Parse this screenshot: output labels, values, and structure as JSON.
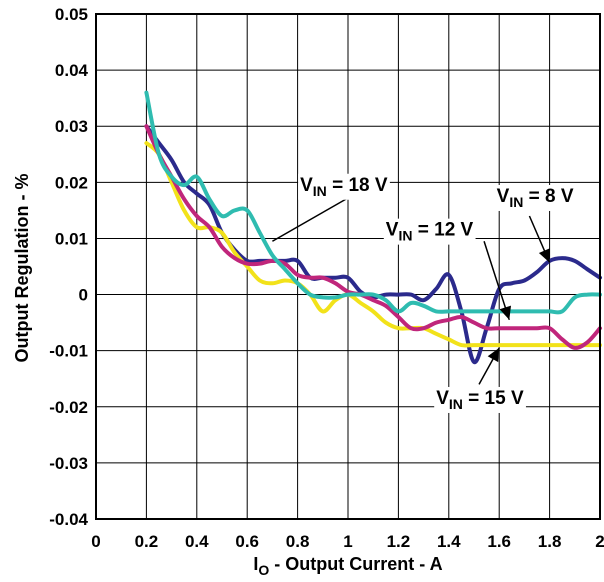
{
  "chart_data": {
    "type": "line",
    "title": "",
    "xlabel": {
      "main": "I",
      "sub": "O",
      "rest": " - Output Current - A"
    },
    "ylabel": "Output Regulation - %",
    "xlim": [
      0,
      2
    ],
    "ylim": [
      -0.04,
      0.05
    ],
    "x_ticks": [
      0,
      0.2,
      0.4,
      0.6,
      0.8,
      1,
      1.2,
      1.4,
      1.6,
      1.8,
      2
    ],
    "x_tick_labels": [
      "0",
      "0.2",
      "0.4",
      "0.6",
      "0.8",
      "1",
      "1.2",
      "1.4",
      "1.6",
      "1.8",
      "2"
    ],
    "y_ticks": [
      0.05,
      0.04,
      0.03,
      0.02,
      0.01,
      0,
      -0.01,
      -0.02,
      -0.03,
      -0.04
    ],
    "y_tick_labels": [
      "0.05",
      "0.04",
      "0.03",
      "0.02",
      "0.01",
      "0",
      "-0.01",
      "-0.02",
      "-0.03",
      "-0.04"
    ],
    "grid": true,
    "series": [
      {
        "name": "VIN = 8 V",
        "color": "#2b2a8c",
        "x": [
          0.2,
          0.25,
          0.3,
          0.35,
          0.4,
          0.45,
          0.5,
          0.55,
          0.6,
          0.65,
          0.7,
          0.75,
          0.8,
          0.85,
          0.9,
          0.95,
          1.0,
          1.05,
          1.1,
          1.15,
          1.2,
          1.25,
          1.3,
          1.35,
          1.4,
          1.45,
          1.5,
          1.55,
          1.6,
          1.65,
          1.7,
          1.75,
          1.8,
          1.85,
          1.9,
          1.95,
          2.0
        ],
        "y": [
          0.03,
          0.027,
          0.024,
          0.02,
          0.018,
          0.016,
          0.011,
          0.008,
          0.006,
          0.006,
          0.006,
          0.006,
          0.006,
          0.003,
          0.003,
          0.003,
          0.003,
          0.0005,
          -0.0005,
          0.0,
          0.0,
          0.0,
          -0.001,
          0.001,
          0.0035,
          -0.003,
          -0.012,
          -0.006,
          0.001,
          0.002,
          0.0025,
          0.004,
          0.006,
          0.0065,
          0.006,
          0.0045,
          0.003
        ]
      },
      {
        "name": "VIN = 12 V",
        "color": "#c0267b",
        "x": [
          0.2,
          0.25,
          0.3,
          0.35,
          0.4,
          0.45,
          0.5,
          0.55,
          0.6,
          0.65,
          0.7,
          0.75,
          0.8,
          0.85,
          0.9,
          0.95,
          1.0,
          1.05,
          1.1,
          1.15,
          1.2,
          1.25,
          1.3,
          1.35,
          1.4,
          1.45,
          1.5,
          1.55,
          1.6,
          1.65,
          1.7,
          1.75,
          1.8,
          1.85,
          1.9,
          1.95,
          2.0
        ],
        "y": [
          0.03,
          0.025,
          0.021,
          0.017,
          0.014,
          0.012,
          0.0085,
          0.0065,
          0.0055,
          0.0055,
          0.006,
          0.0055,
          0.0035,
          0.003,
          0.003,
          0.002,
          0.0005,
          0.0,
          -0.001,
          -0.002,
          -0.004,
          -0.006,
          -0.006,
          -0.005,
          -0.0045,
          -0.004,
          -0.005,
          -0.006,
          -0.006,
          -0.006,
          -0.006,
          -0.006,
          -0.006,
          -0.008,
          -0.0095,
          -0.0085,
          -0.006
        ]
      },
      {
        "name": "VIN = 15 V",
        "color": "#f2e21a",
        "x": [
          0.2,
          0.25,
          0.3,
          0.35,
          0.4,
          0.45,
          0.5,
          0.55,
          0.6,
          0.65,
          0.7,
          0.75,
          0.8,
          0.85,
          0.9,
          0.95,
          1.0,
          1.05,
          1.1,
          1.15,
          1.2,
          1.25,
          1.3,
          1.35,
          1.4,
          1.45,
          1.5,
          1.55,
          1.6,
          1.65,
          1.7,
          1.75,
          1.8,
          1.85,
          1.9,
          1.95,
          2.0
        ],
        "y": [
          0.027,
          0.025,
          0.02,
          0.015,
          0.012,
          0.012,
          0.011,
          0.0075,
          0.005,
          0.0025,
          0.002,
          0.0025,
          0.002,
          0.0,
          -0.003,
          -0.001,
          0.0,
          -0.0015,
          -0.003,
          -0.005,
          -0.006,
          -0.006,
          -0.006,
          -0.007,
          -0.008,
          -0.009,
          -0.009,
          -0.009,
          -0.009,
          -0.009,
          -0.009,
          -0.009,
          -0.009,
          -0.009,
          -0.009,
          -0.009,
          -0.009
        ]
      },
      {
        "name": "VIN = 18 V",
        "color": "#2fbcb0",
        "x": [
          0.2,
          0.25,
          0.3,
          0.35,
          0.4,
          0.45,
          0.5,
          0.55,
          0.6,
          0.65,
          0.7,
          0.75,
          0.8,
          0.85,
          0.9,
          0.95,
          1.0,
          1.05,
          1.1,
          1.15,
          1.2,
          1.25,
          1.3,
          1.35,
          1.4,
          1.45,
          1.5,
          1.55,
          1.6,
          1.65,
          1.7,
          1.75,
          1.8,
          1.85,
          1.9,
          1.95,
          2.0
        ],
        "y": [
          0.036,
          0.025,
          0.021,
          0.0195,
          0.021,
          0.017,
          0.014,
          0.015,
          0.015,
          0.011,
          0.007,
          0.0045,
          0.002,
          0.0,
          -0.0005,
          -0.0005,
          0.0,
          0.0,
          0.0,
          -0.001,
          -0.003,
          -0.0015,
          -0.002,
          -0.003,
          -0.003,
          -0.003,
          -0.003,
          -0.003,
          -0.003,
          -0.003,
          -0.003,
          -0.003,
          -0.003,
          -0.003,
          -0.0005,
          0.0,
          0.0
        ]
      }
    ],
    "annotations": [
      {
        "main": "V",
        "sub": "IN",
        "rest": " = 18 V",
        "series": "VIN = 18 V",
        "label_at": [
          0.81,
          0.0185
        ],
        "arrow_from": [
          1.05,
          0.0185
        ],
        "arrow_to": [
          0.7,
          0.0095
        ],
        "arrow_style": "line"
      },
      {
        "main": "V",
        "sub": "IN",
        "rest": " = 8 V",
        "series": "VIN = 8 V",
        "label_at": [
          1.59,
          0.0165
        ],
        "arrow_from": [
          1.72,
          0.014
        ],
        "arrow_to": [
          1.8,
          0.0057
        ],
        "arrow_style": "arrow"
      },
      {
        "main": "V",
        "sub": "IN",
        "rest": " = 12 V",
        "series": "VIN = 12 V",
        "label_at": [
          1.15,
          0.0105
        ],
        "arrow_from": [
          1.54,
          0.0095
        ],
        "arrow_to": [
          1.64,
          -0.0045
        ],
        "arrow_style": "arrow"
      },
      {
        "main": "V",
        "sub": "IN",
        "rest": " = 15 V",
        "series": "VIN = 15 V",
        "label_at": [
          1.35,
          -0.0195
        ],
        "arrow_from": [
          1.52,
          -0.016
        ],
        "arrow_to": [
          1.6,
          -0.0095
        ],
        "arrow_style": "arrow"
      }
    ]
  }
}
